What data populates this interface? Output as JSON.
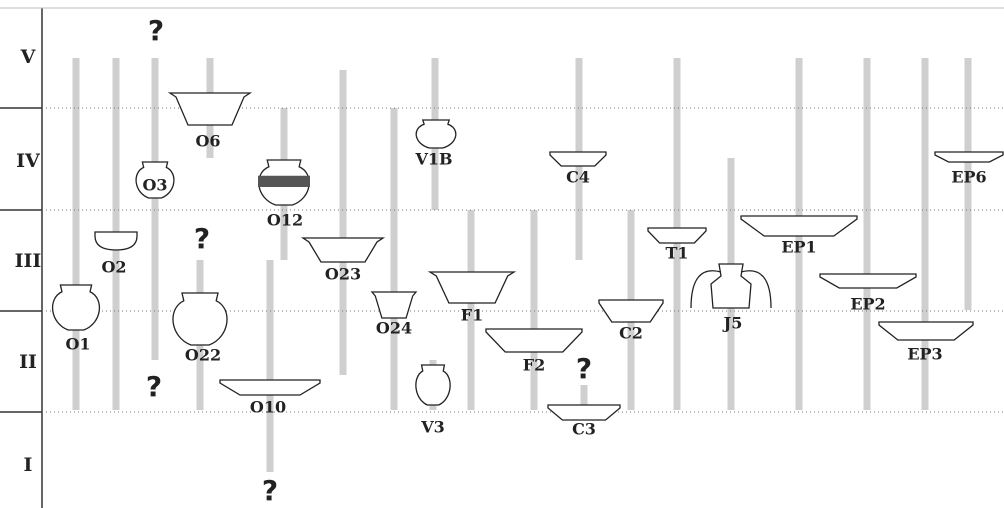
{
  "phases": [
    "V",
    "IV",
    "III",
    "II",
    "I"
  ],
  "vessels": [
    "O1",
    "O2",
    "O3",
    "O6",
    "O12",
    "O22",
    "O10",
    "O23",
    "O24",
    "V1B",
    "V3",
    "F1",
    "F2",
    "C4",
    "C3",
    "C2",
    "T1",
    "J5",
    "EP1",
    "EP2",
    "EP3",
    "EP6"
  ],
  "unknown_marks": [
    "?",
    "?",
    "?",
    "?",
    "?"
  ]
}
